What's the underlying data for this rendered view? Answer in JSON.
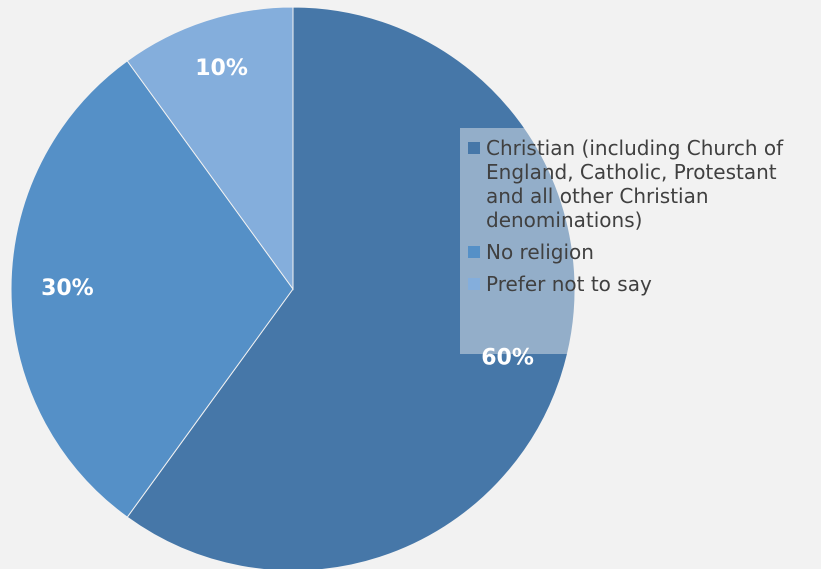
{
  "chart_data": {
    "type": "pie",
    "categories": [
      "Christian (including Church of England, Catholic, Protestant and all other Christian denominations)",
      "No religion",
      "Prefer not to say"
    ],
    "values": [
      60,
      30,
      10
    ],
    "data_labels": [
      "60%",
      "30%",
      "10%"
    ],
    "colors": [
      "#4677a8",
      "#5590c7",
      "#84aedc"
    ],
    "legend_position": "right",
    "start_angle": "12 o'clock, clockwise"
  }
}
